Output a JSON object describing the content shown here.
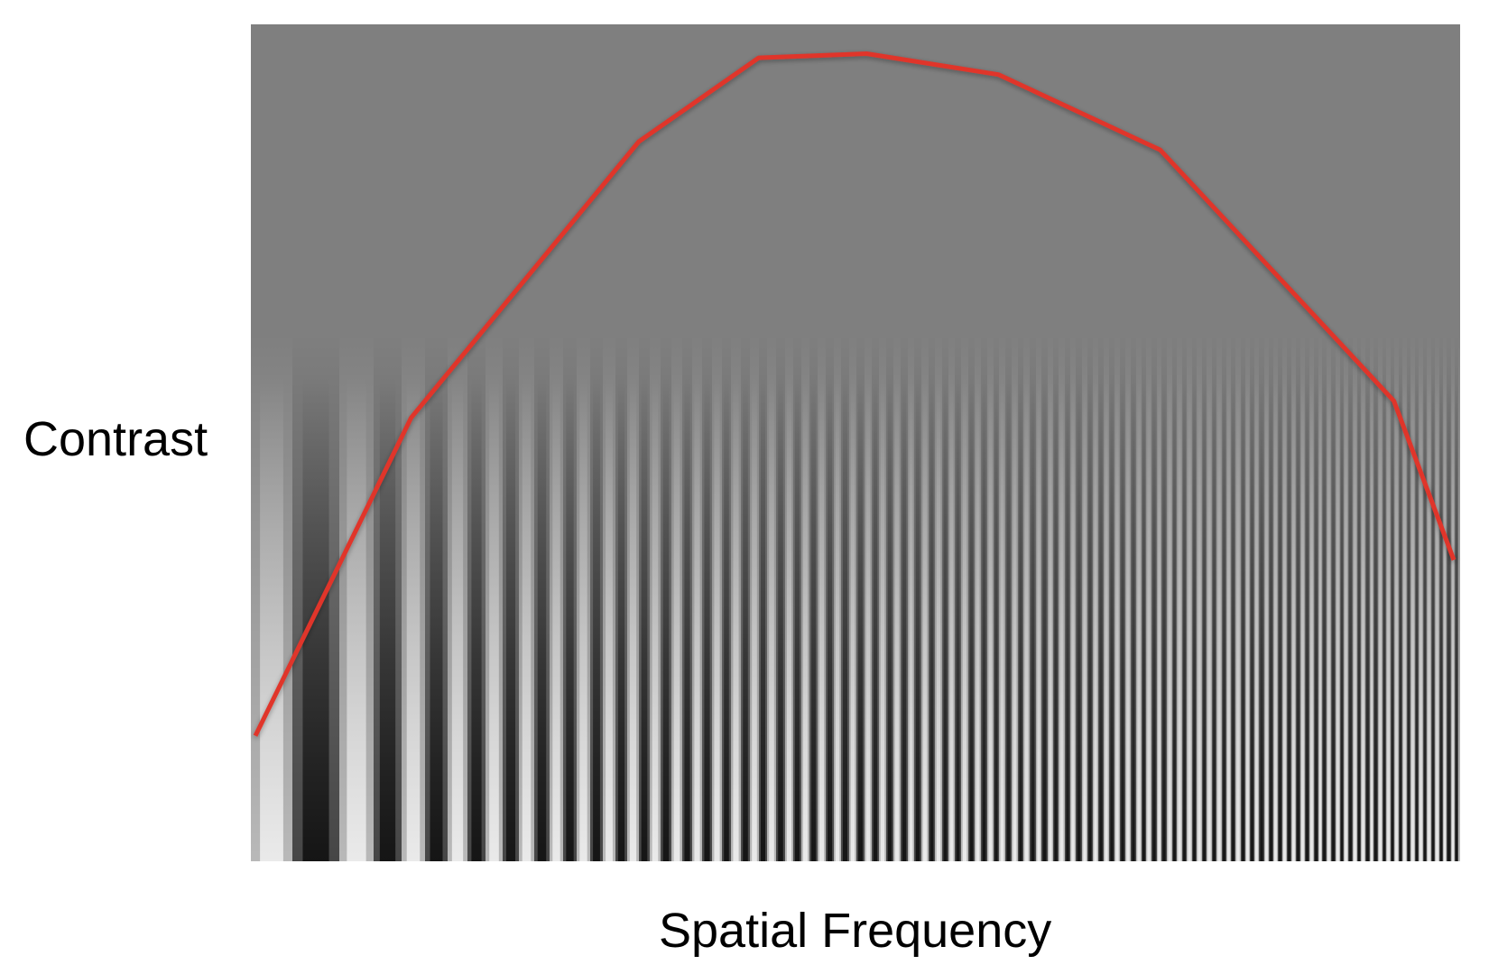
{
  "labels": {
    "y_axis": "Contrast",
    "x_axis": "Spatial Frequency"
  },
  "colors": {
    "background": "#7f7f7f",
    "curve": "#e0342b",
    "page": "#ffffff"
  },
  "chart_data": {
    "type": "line",
    "title": "",
    "xlabel": "Spatial Frequency",
    "ylabel": "Contrast",
    "grid": false,
    "background": "grating image with increasing frequency left to right and increasing contrast downward",
    "series": [
      {
        "x": [
          0,
          0.13,
          0.32,
          0.42,
          0.51,
          0.62,
          0.755,
          0.95,
          1.0
        ],
        "values": [
          0.15,
          0.53,
          0.86,
          0.96,
          0.965,
          0.94,
          0.85,
          0.55,
          0.36
        ]
      }
    ],
    "xlim": [
      0,
      1
    ],
    "ylim": [
      0,
      1
    ]
  }
}
